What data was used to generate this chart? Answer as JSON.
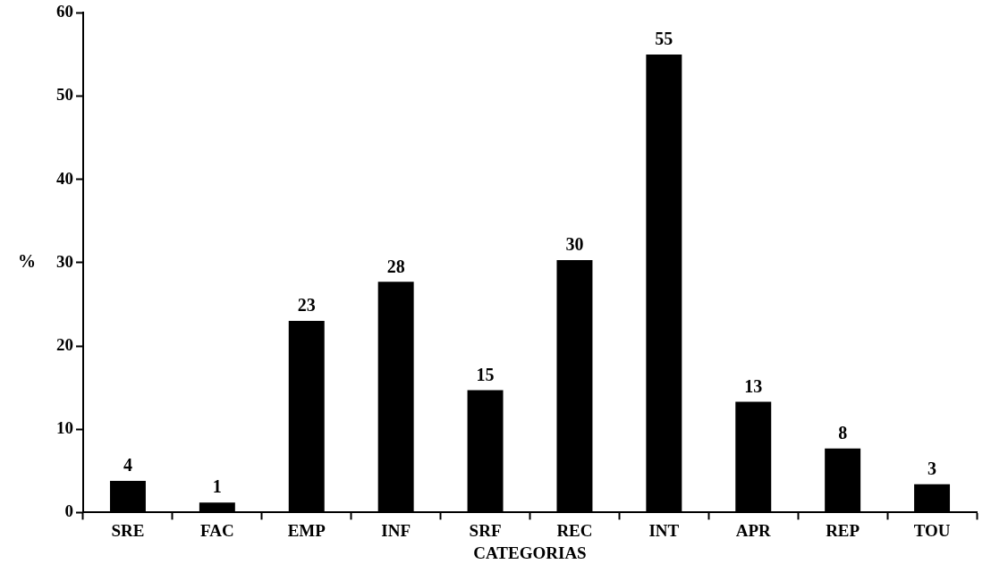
{
  "chart_data": {
    "type": "bar",
    "xlabel": "CATEGORIAS",
    "ylabel": "%",
    "categories": [
      "SRE",
      "FAC",
      "EMP",
      "INF",
      "SRF",
      "REC",
      "INT",
      "APR",
      "REP",
      "TOU"
    ],
    "values": [
      3.8,
      1.2,
      23,
      27.7,
      14.7,
      30.3,
      55,
      13.3,
      7.7,
      3.4
    ],
    "value_labels": [
      "4",
      "1",
      "23",
      "28",
      "15",
      "30",
      "55",
      "13",
      "8",
      "3"
    ],
    "color": "#000000",
    "ylim": [
      0,
      60
    ],
    "yticks": [
      0,
      10,
      20,
      30,
      40,
      50,
      60
    ],
    "grid": false,
    "legend": false
  }
}
